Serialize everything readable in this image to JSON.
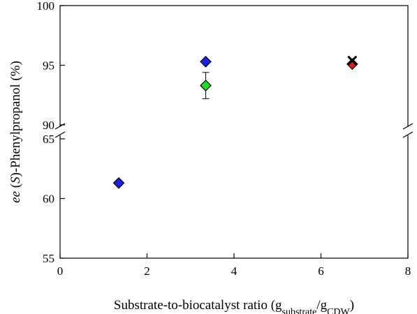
{
  "chart_data": {
    "type": "scatter",
    "title": "",
    "xlabel": {
      "main": "Substrate-to-biocatalyst ratio (g",
      "sub1": "substrate",
      "mid": "/g",
      "sub2": "CDW",
      "end": ")"
    },
    "ylabel": {
      "italic": "ee",
      "mid": " (",
      "italic2": "S",
      "end": ")-Phenylpropanol (%)"
    },
    "xlim": [
      0,
      8
    ],
    "x_ticks": [
      0,
      2,
      4,
      6,
      8
    ],
    "y_upper_range": [
      90,
      100
    ],
    "y_lower_range": [
      55,
      65
    ],
    "y_upper_ticks": [
      90,
      95,
      100
    ],
    "y_lower_ticks": [
      55,
      60,
      65
    ],
    "axis_break": "between 65 and 90",
    "grid": false,
    "points": [
      {
        "x": 1.35,
        "y": 61.3,
        "marker": "diamond",
        "color": "#1f1fe0"
      },
      {
        "x": 3.35,
        "y": 95.3,
        "marker": "diamond",
        "color": "#1f1fe0"
      },
      {
        "x": 3.35,
        "y": 93.3,
        "marker": "diamond",
        "color": "#22dd22",
        "error": [
          92.2,
          94.4
        ]
      },
      {
        "x": 6.72,
        "y": 95.1,
        "marker": "diamond",
        "color": "#e01a1a"
      },
      {
        "x": 6.72,
        "y": 95.4,
        "marker": "x",
        "color": "#000000"
      }
    ]
  }
}
